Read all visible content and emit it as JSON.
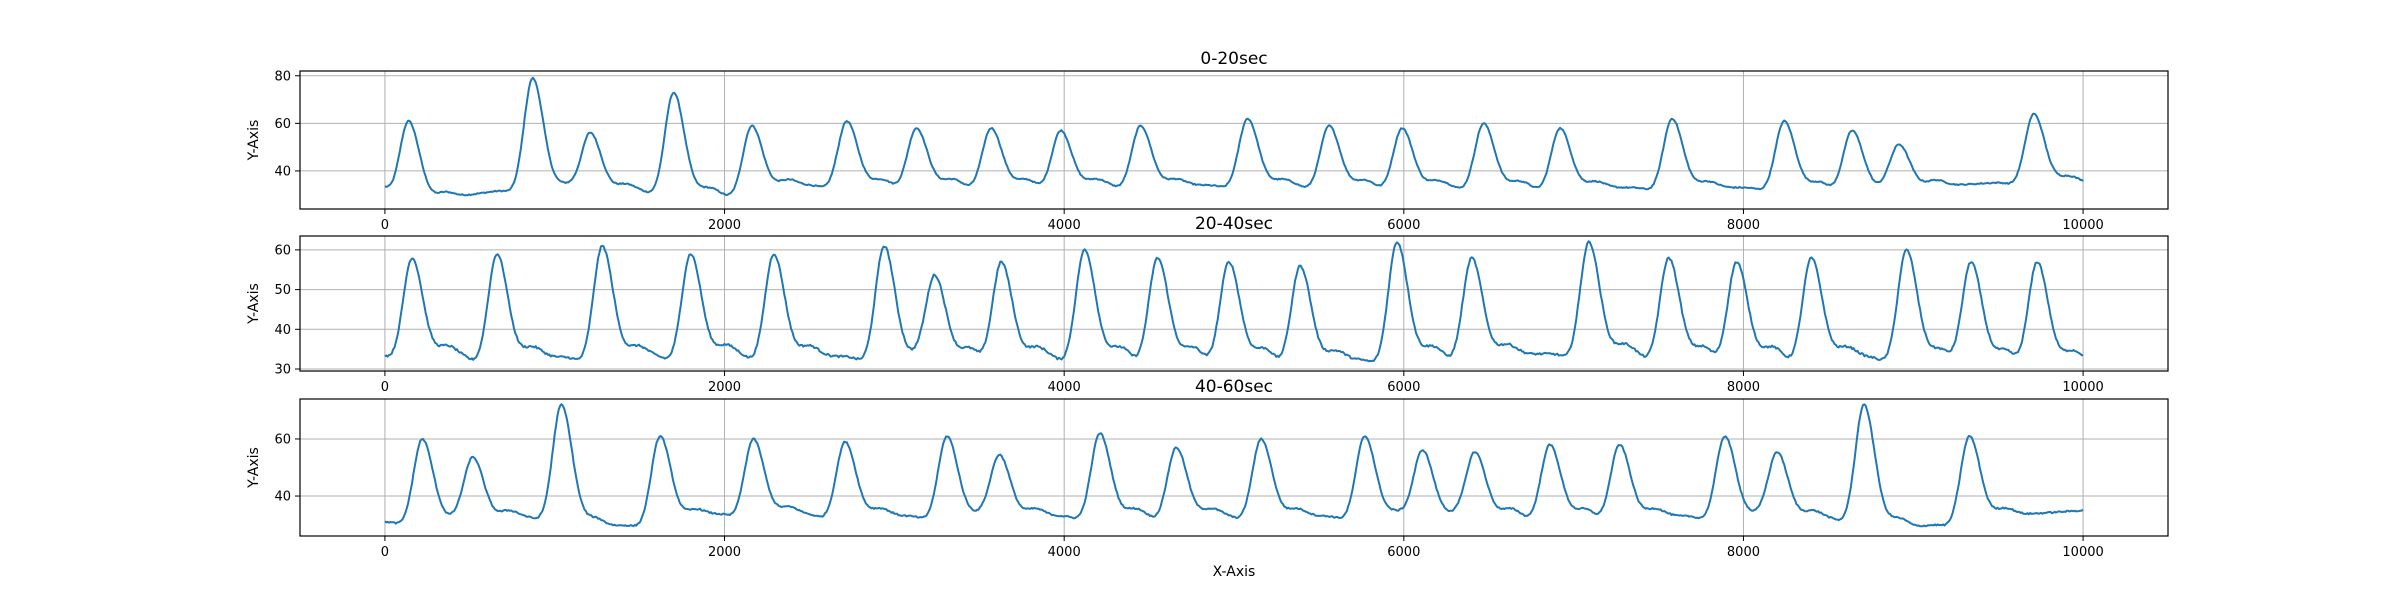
{
  "chart_data": [
    {
      "type": "line",
      "title": "0-20sec",
      "xlabel": "",
      "ylabel": "Y-Axis",
      "xlim": [
        -500,
        10500
      ],
      "ylim": [
        24,
        82
      ],
      "xticks": [
        0,
        2000,
        4000,
        6000,
        8000,
        10000
      ],
      "yticks": [
        40,
        60,
        80
      ],
      "grid": true,
      "color": "#1f77b4",
      "baseline": [
        [
          0,
          34
        ],
        [
          60,
          31
        ],
        [
          300,
          28
        ],
        [
          700,
          32
        ],
        [
          1100,
          33
        ],
        [
          2000,
          30
        ],
        [
          2400,
          34
        ],
        [
          5000,
          34
        ],
        [
          7000,
          33
        ],
        [
          9000,
          33
        ],
        [
          9700,
          36
        ],
        [
          10000,
          35
        ]
      ],
      "peaks": [
        [
          140,
          61
        ],
        [
          870,
          79
        ],
        [
          1210,
          56
        ],
        [
          1700,
          73
        ],
        [
          2160,
          59
        ],
        [
          2720,
          61
        ],
        [
          3130,
          58
        ],
        [
          3570,
          58
        ],
        [
          3980,
          57
        ],
        [
          4450,
          59
        ],
        [
          5080,
          62
        ],
        [
          5560,
          59
        ],
        [
          5990,
          58
        ],
        [
          6470,
          60
        ],
        [
          6920,
          58
        ],
        [
          7580,
          62
        ],
        [
          8240,
          61
        ],
        [
          8640,
          57
        ],
        [
          8920,
          50
        ],
        [
          9710,
          64
        ]
      ]
    },
    {
      "type": "line",
      "title": "20-40sec",
      "xlabel": "",
      "ylabel": "Y-Axis",
      "xlim": [
        -500,
        10500
      ],
      "ylim": [
        29.5,
        63.5
      ],
      "xticks": [
        0,
        2000,
        4000,
        6000,
        8000,
        10000
      ],
      "yticks": [
        30,
        40,
        50,
        60
      ],
      "grid": true,
      "color": "#1f77b4",
      "baseline": [
        [
          0,
          34
        ],
        [
          500,
          33
        ],
        [
          1000,
          33
        ],
        [
          2000,
          33.5
        ],
        [
          3000,
          33
        ],
        [
          4000,
          33
        ],
        [
          5000,
          33
        ],
        [
          5600,
          32
        ],
        [
          6000,
          33
        ],
        [
          7000,
          34
        ],
        [
          8000,
          33
        ],
        [
          9000,
          33
        ],
        [
          10000,
          32
        ]
      ],
      "peaks": [
        [
          160,
          58
        ],
        [
          660,
          59
        ],
        [
          1280,
          61
        ],
        [
          1800,
          59
        ],
        [
          2290,
          59
        ],
        [
          2940,
          61
        ],
        [
          3240,
          53
        ],
        [
          3630,
          57
        ],
        [
          4120,
          60
        ],
        [
          4550,
          58
        ],
        [
          4970,
          57
        ],
        [
          5390,
          56
        ],
        [
          5960,
          62
        ],
        [
          6400,
          58
        ],
        [
          7090,
          62
        ],
        [
          7560,
          58
        ],
        [
          7960,
          57
        ],
        [
          8400,
          58
        ],
        [
          8960,
          60
        ],
        [
          9340,
          57
        ],
        [
          9730,
          57
        ]
      ]
    },
    {
      "type": "line",
      "title": "40-60sec",
      "xlabel": "X-Axis",
      "ylabel": "Y-Axis",
      "xlim": [
        -500,
        10500
      ],
      "ylim": [
        26,
        74
      ],
      "xticks": [
        0,
        2000,
        4000,
        6000,
        8000,
        10000
      ],
      "yticks": [
        40,
        60
      ],
      "grid": true,
      "color": "#1f77b4",
      "baseline": [
        [
          0,
          31
        ],
        [
          600,
          32
        ],
        [
          1000,
          33
        ],
        [
          1300,
          29
        ],
        [
          2000,
          34
        ],
        [
          3000,
          33
        ],
        [
          4000,
          33
        ],
        [
          5000,
          33
        ],
        [
          6000,
          33
        ],
        [
          7000,
          33
        ],
        [
          8000,
          33
        ],
        [
          8600,
          32
        ],
        [
          9000,
          29
        ],
        [
          9500,
          33
        ],
        [
          10000,
          35
        ]
      ],
      "peaks": [
        [
          220,
          60
        ],
        [
          520,
          53
        ],
        [
          1040,
          72
        ],
        [
          1620,
          61
        ],
        [
          2170,
          60
        ],
        [
          2710,
          59
        ],
        [
          3310,
          61
        ],
        [
          3620,
          54
        ],
        [
          4210,
          62
        ],
        [
          4660,
          57
        ],
        [
          5160,
          60
        ],
        [
          5770,
          61
        ],
        [
          6110,
          56
        ],
        [
          6420,
          55
        ],
        [
          6860,
          58
        ],
        [
          7270,
          58
        ],
        [
          7890,
          61
        ],
        [
          8200,
          55
        ],
        [
          8710,
          72
        ],
        [
          9330,
          61
        ]
      ]
    }
  ]
}
